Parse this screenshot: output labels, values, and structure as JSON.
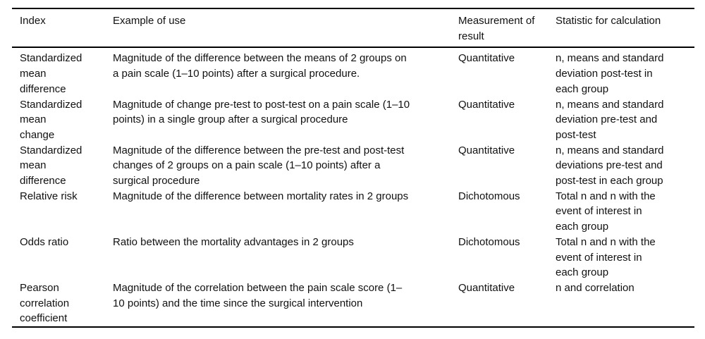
{
  "table": {
    "headers": {
      "index": "Index",
      "example": "Example of use",
      "measurement": "Measurement of\nresult",
      "statistic": "Statistic for calculation"
    },
    "rows": [
      {
        "index": "Standardized\nmean\ndifference",
        "example": "Magnitude of the difference between the means of 2 groups on\na pain scale (1–10 points) after a surgical procedure.",
        "measurement": "Quantitative",
        "statistic": "n, means and standard\ndeviation post-test in\neach group"
      },
      {
        "index": "Standardized\nmean\nchange",
        "example": "Magnitude of change pre-test to post-test on a pain scale (1–10\npoints) in a single group after a surgical procedure",
        "measurement": "Quantitative",
        "statistic": "n, means and standard\ndeviation pre-test and\npost-test"
      },
      {
        "index": "Standardized\nmean\ndifference",
        "example": "Magnitude of the difference between the pre-test and post-test\nchanges of 2 groups on a pain scale (1–10 points) after a\nsurgical procedure",
        "measurement": "Quantitative",
        "statistic": "n, means and standard\ndeviations pre-test and\npost-test in each group"
      },
      {
        "index": "Relative risk",
        "example": "Magnitude of the difference between mortality rates in 2 groups",
        "measurement": "Dichotomous",
        "statistic": "Total n and n with the\nevent of interest in\neach group"
      },
      {
        "index": "Odds ratio",
        "example": "Ratio between the mortality advantages in 2 groups",
        "measurement": "Dichotomous",
        "statistic": "Total n and n with the\nevent of interest in\neach group"
      },
      {
        "index": "Pearson\ncorrelation\ncoefficient",
        "example": "Magnitude of the correlation between the pain scale score (1–\n10 points) and the time since the surgical intervention",
        "measurement": "Quantitative",
        "statistic": "n and correlation"
      }
    ]
  }
}
